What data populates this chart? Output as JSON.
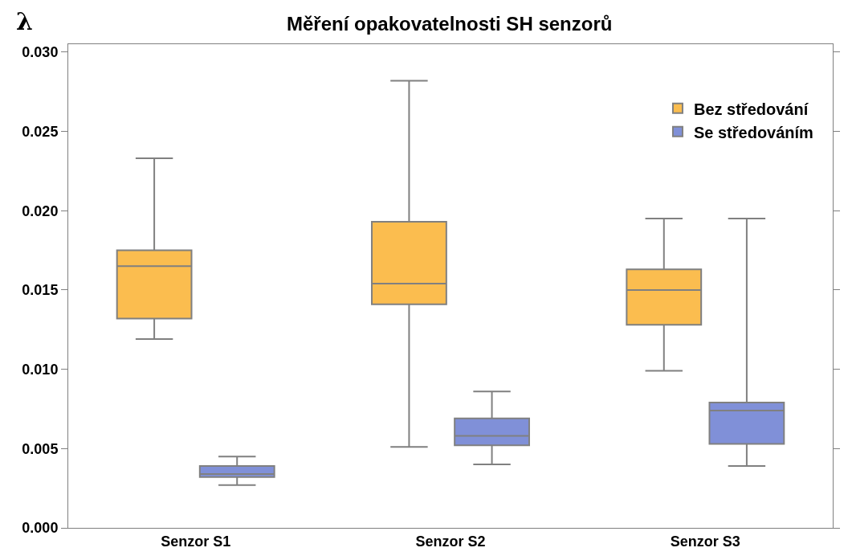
{
  "chart_data": {
    "type": "box",
    "title": "Měření opakovatelnosti SH senzorů",
    "ylabel": "λ",
    "categories": [
      "Senzor S1",
      "Senzor S2",
      "Senzor S3"
    ],
    "series": [
      {
        "name": "Bez středování",
        "color": "#fbbd4f",
        "boxes": [
          {
            "low": 0.0119,
            "q1": 0.0132,
            "median": 0.0165,
            "q3": 0.0175,
            "high": 0.0233
          },
          {
            "low": 0.0051,
            "q1": 0.0141,
            "median": 0.0154,
            "q3": 0.0193,
            "high": 0.0282
          },
          {
            "low": 0.0099,
            "q1": 0.0128,
            "median": 0.015,
            "q3": 0.0163,
            "high": 0.0195
          }
        ]
      },
      {
        "name": "Se středováním",
        "color": "#8090d8",
        "boxes": [
          {
            "low": 0.0027,
            "q1": 0.0032,
            "median": 0.0034,
            "q3": 0.0039,
            "high": 0.0045
          },
          {
            "low": 0.004,
            "q1": 0.0052,
            "median": 0.0058,
            "q3": 0.0069,
            "high": 0.0086
          },
          {
            "low": 0.0039,
            "q1": 0.0053,
            "median": 0.0074,
            "q3": 0.0079,
            "high": 0.0195
          }
        ]
      }
    ],
    "ylim": [
      0,
      0.0305
    ],
    "yticks": [
      {
        "value": 0,
        "label": "0.000"
      },
      {
        "value": 0.005,
        "label": "0.005"
      },
      {
        "value": 0.01,
        "label": "0.010"
      },
      {
        "value": 0.015,
        "label": "0.015"
      },
      {
        "value": 0.02,
        "label": "0.020"
      },
      {
        "value": 0.025,
        "label": "0.025"
      },
      {
        "value": 0.03,
        "label": "0.030"
      }
    ],
    "legend": "top right"
  }
}
